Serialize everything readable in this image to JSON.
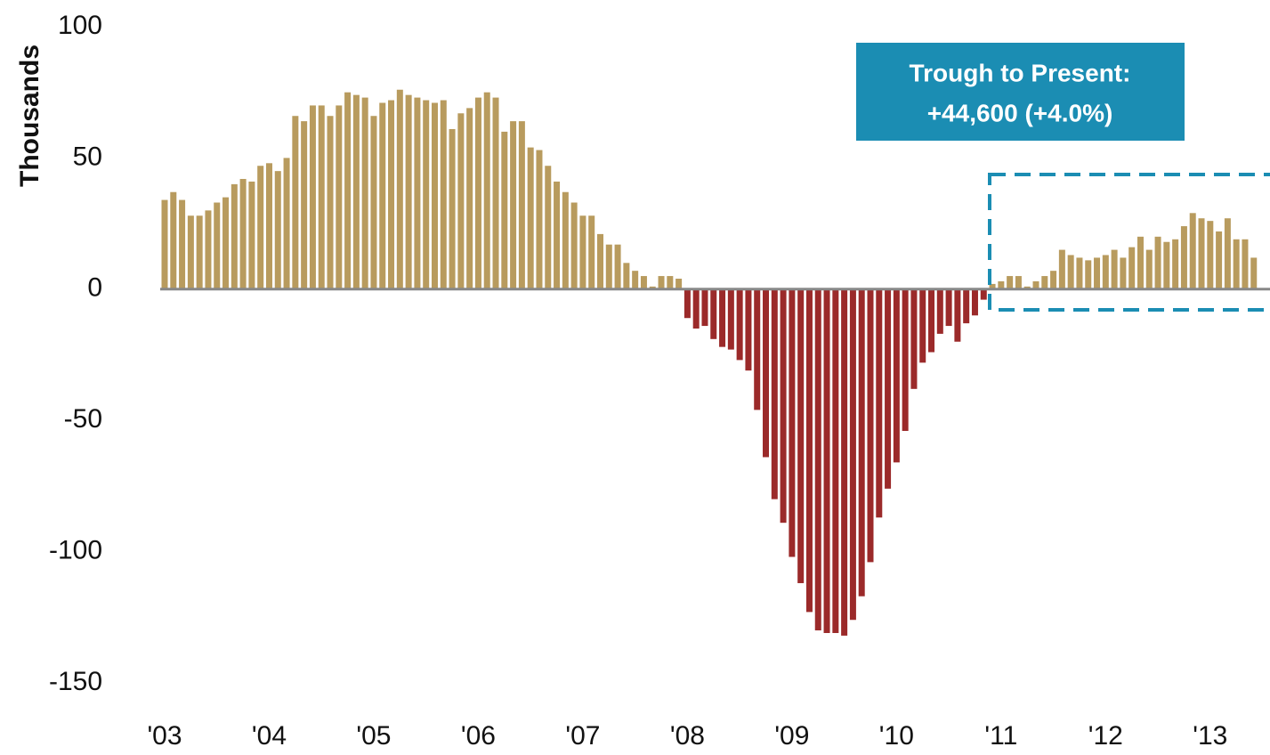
{
  "chart_data": {
    "type": "bar",
    "y_label": "Thousands",
    "categories": [
      "'03",
      null,
      null,
      null,
      null,
      null,
      null,
      null,
      null,
      null,
      null,
      null,
      "'04",
      null,
      null,
      null,
      null,
      null,
      null,
      null,
      null,
      null,
      null,
      null,
      "'05",
      null,
      null,
      null,
      null,
      null,
      null,
      null,
      null,
      null,
      null,
      null,
      "'06",
      null,
      null,
      null,
      null,
      null,
      null,
      null,
      null,
      null,
      null,
      null,
      "'07",
      null,
      null,
      null,
      null,
      null,
      null,
      null,
      null,
      null,
      null,
      null,
      "'08",
      null,
      null,
      null,
      null,
      null,
      null,
      null,
      null,
      null,
      null,
      null,
      "'09",
      null,
      null,
      null,
      null,
      null,
      null,
      null,
      null,
      null,
      null,
      null,
      "'10",
      null,
      null,
      null,
      null,
      null,
      null,
      null,
      null,
      null,
      null,
      null,
      "'11",
      null,
      null,
      null,
      null,
      null,
      null,
      null,
      null,
      null,
      null,
      null,
      "'12",
      null,
      null,
      null,
      null,
      null,
      null,
      null,
      null,
      null,
      null,
      null,
      "'13",
      null,
      null,
      null,
      null,
      null
    ],
    "values": [
      34,
      37,
      34,
      28,
      28,
      30,
      33,
      35,
      40,
      42,
      41,
      47,
      48,
      45,
      50,
      66,
      64,
      70,
      70,
      66,
      70,
      75,
      74,
      73,
      66,
      71,
      72,
      76,
      74,
      73,
      72,
      71,
      72,
      61,
      67,
      69,
      73,
      75,
      73,
      60,
      64,
      64,
      54,
      53,
      47,
      41,
      37,
      33,
      28,
      28,
      21,
      17,
      17,
      10,
      7,
      5,
      1,
      5,
      5,
      4,
      -11,
      -15,
      -14,
      -19,
      -22,
      -23,
      -27,
      -31,
      -46,
      -64,
      -80,
      -89,
      -102,
      -112,
      -123,
      -130,
      -131,
      -131,
      -132,
      -126,
      -117,
      -104,
      -87,
      -76,
      -66,
      -54,
      -38,
      -28,
      -24,
      -17,
      -14,
      -20,
      -13,
      -10,
      -4,
      2,
      3,
      5,
      5,
      1,
      3,
      5,
      7,
      15,
      13,
      12,
      11,
      12,
      13,
      15,
      12,
      16,
      20,
      15,
      20,
      18,
      19,
      24,
      29,
      27,
      26,
      22,
      27,
      19,
      19,
      12
    ],
    "color_positive": "#b89b5e",
    "color_negative": "#9b2a2a",
    "ylim": [
      -150,
      100
    ],
    "yticks": [
      100,
      50,
      0,
      -50,
      -100,
      -150
    ],
    "grid": false,
    "annotation": [
      "Trough to Present:",
      "+44,600 (+4.0%)"
    ],
    "annotation_color": "#1b8db3"
  }
}
